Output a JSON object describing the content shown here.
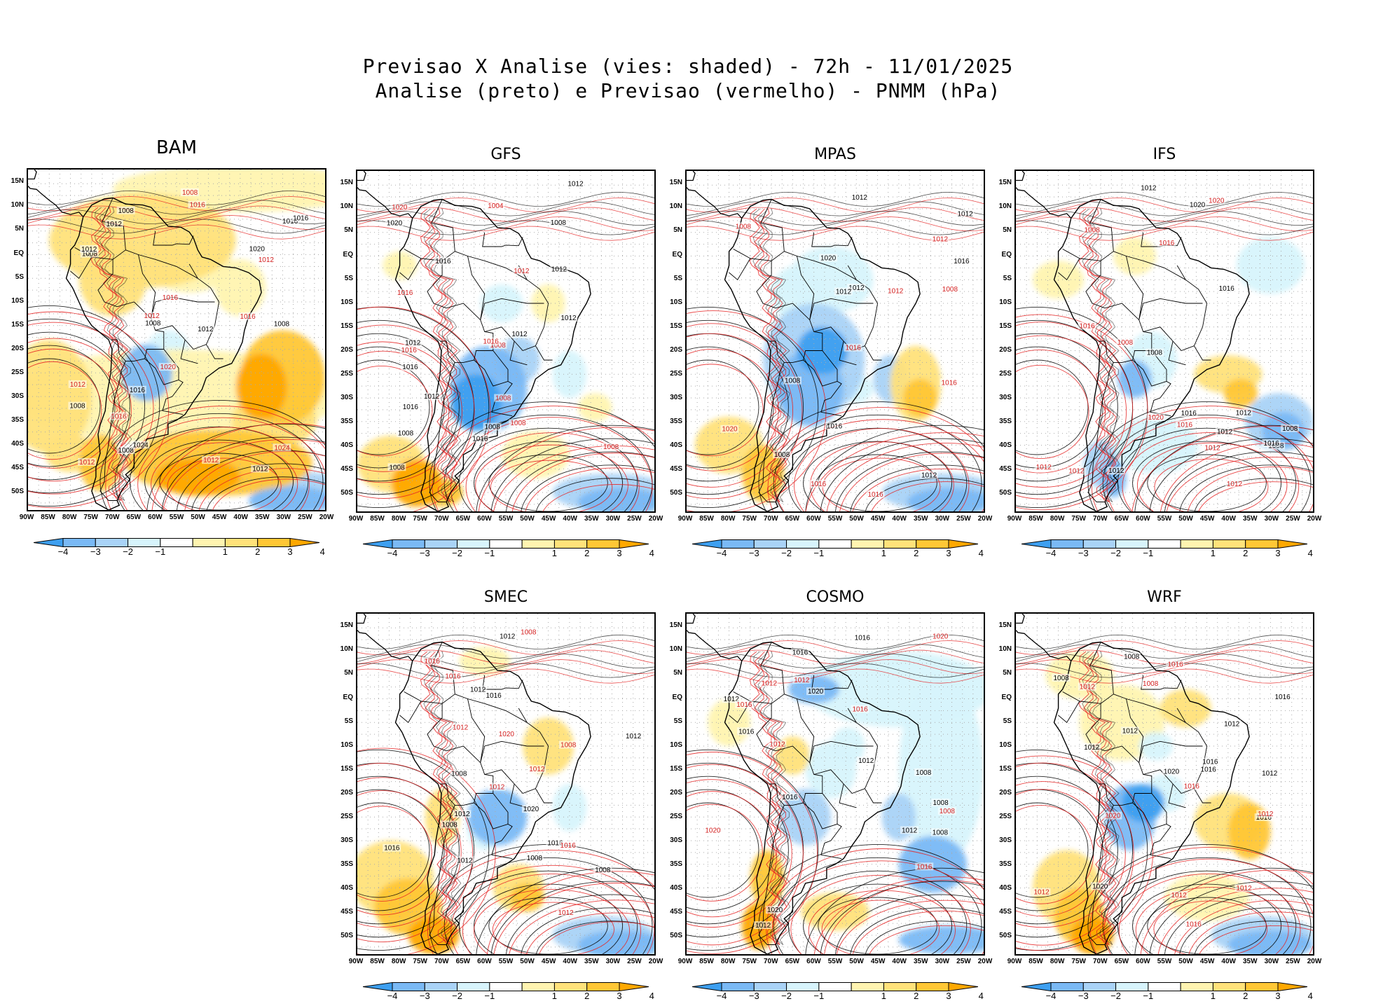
{
  "title": {
    "line1": "Previsao X Analise (vies: shaded) - 72h - 11/01/2025",
    "line2": "Analise (preto) e Previsao (vermelho) - PNMM (hPa)"
  },
  "colors": {
    "neg4": "#3d9ff0",
    "neg3": "#7ab9f5",
    "neg2": "#a9d3f7",
    "neg1": "#d7f4fc",
    "zero": "#ffffff",
    "pos1": "#fff4b0",
    "pos2": "#ffe27a",
    "pos3": "#ffc735",
    "pos4": "#ffa800",
    "analysis_contour": "#000000",
    "forecast_contour": "#e52222",
    "grid": "#aaaaaa"
  },
  "axes": {
    "lat_labels": [
      "15N",
      "10N",
      "5N",
      "EQ",
      "5S",
      "10S",
      "15S",
      "20S",
      "25S",
      "30S",
      "35S",
      "40S",
      "45S",
      "50S"
    ],
    "lon_labels": [
      "90W",
      "85W",
      "80W",
      "75W",
      "70W",
      "65W",
      "60W",
      "55W",
      "50W",
      "45W",
      "40W",
      "35W",
      "30W",
      "25W",
      "20W"
    ]
  },
  "colorbar": {
    "labels": [
      "-4",
      "-3",
      "-2",
      "-1",
      "1",
      "2",
      "3",
      "4"
    ]
  },
  "panels": [
    {
      "id": "bam",
      "name": "BAM",
      "contour_labels_black": [
        "1012",
        "1008",
        "1008",
        "1012",
        "1008",
        "1008",
        "1012",
        "1008",
        "1016",
        "1016",
        "1020",
        "1008",
        "1012",
        "1016",
        "1024"
      ],
      "contour_labels_red": [
        "1016",
        "1012",
        "1012",
        "1008",
        "1012",
        "1012",
        "1012",
        "1016",
        "1016",
        "1020",
        "1024",
        "1016"
      ]
    },
    {
      "id": "gfs",
      "name": "GFS",
      "contour_labels_black": [
        "1012",
        "1016",
        "1012",
        "1008",
        "1012",
        "1012",
        "1008",
        "1016",
        "1008",
        "1012",
        "1016",
        "1016",
        "1008",
        "1020",
        "1012"
      ],
      "contour_labels_red": [
        "1016",
        "1008",
        "1008",
        "1012",
        "1008",
        "1004",
        "1016",
        "1008",
        "1016",
        "1020"
      ]
    },
    {
      "id": "mpas",
      "name": "MPAS",
      "contour_labels_black": [
        "1008",
        "1012",
        "1012",
        "1012",
        "1016",
        "1008",
        "1012",
        "1016",
        "1012",
        "1020"
      ],
      "contour_labels_red": [
        "1016",
        "1008",
        "1012",
        "1008",
        "1012",
        "1016",
        "1016",
        "1020",
        "1016"
      ]
    },
    {
      "id": "ifs",
      "name": "IFS",
      "contour_labels_black": [
        "1012",
        "1008",
        "1012",
        "1008",
        "1012",
        "1016",
        "1008",
        "1016",
        "1020",
        "1012",
        "1016"
      ],
      "contour_labels_red": [
        "1012",
        "1012",
        "1008",
        "1012",
        "1016",
        "1008",
        "1020",
        "1016",
        "1020",
        "1012",
        "1016"
      ]
    },
    {
      "id": "smec",
      "name": "SMEC",
      "contour_labels_black": [
        "1012",
        "1008",
        "1008",
        "1012",
        "1008",
        "1012",
        "1016",
        "1016",
        "1012",
        "1012",
        "1016",
        "1020",
        "1008"
      ],
      "contour_labels_red": [
        "1016",
        "1012",
        "1012",
        "1008",
        "1012",
        "1008",
        "1016",
        "1020",
        "1016",
        "1012"
      ]
    },
    {
      "id": "cosmo",
      "name": "COSMO",
      "contour_labels_black": [
        "1008",
        "1012",
        "1008",
        "1012",
        "1016",
        "1012",
        "1008",
        "1012",
        "1016",
        "1020",
        "1016",
        "1020",
        "1016"
      ],
      "contour_labels_red": [
        "1012",
        "1012",
        "1012",
        "1016",
        "1008",
        "1016",
        "1020",
        "1016",
        "1020"
      ]
    },
    {
      "id": "wrf",
      "name": "WRF",
      "contour_labels_black": [
        "1012",
        "1016",
        "1012",
        "1008",
        "1012",
        "1016",
        "1008",
        "1016",
        "1012",
        "1020",
        "1016",
        "1020"
      ],
      "contour_labels_red": [
        "1012",
        "1008",
        "1012",
        "1012",
        "1016",
        "1012",
        "1016",
        "1020",
        "1012",
        "1016"
      ]
    }
  ]
}
